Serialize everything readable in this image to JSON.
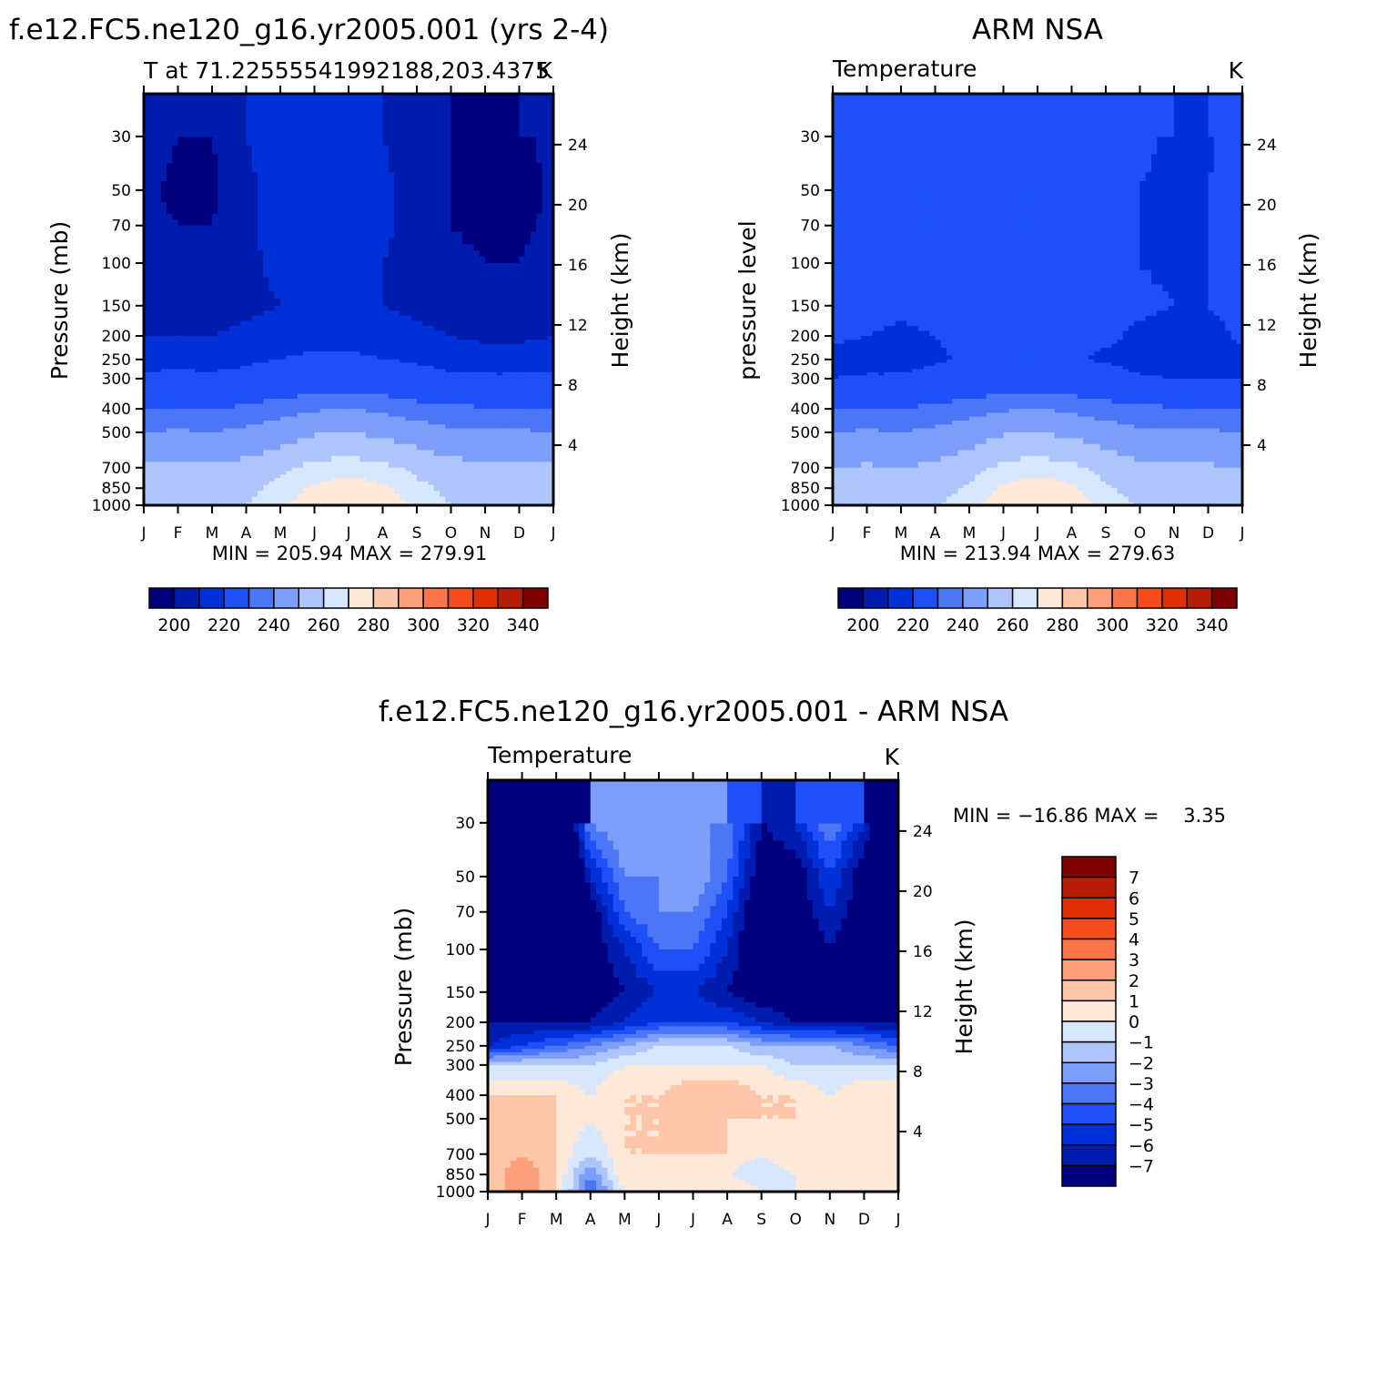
{
  "chart_data": [
    {
      "type": "heatmap",
      "title": "f.e12.FC5.ne120_g16.yr2005.001 (yrs 2-4)",
      "subtitle_left": "T at 71.22555541992188,203.4375",
      "subtitle_right": "K",
      "ylabel_left": "Pressure (mb)",
      "ylabel_right": "Height (km)",
      "x_ticks": [
        "J",
        "F",
        "M",
        "A",
        "M",
        "J",
        "J",
        "A",
        "S",
        "O",
        "N",
        "D",
        "J"
      ],
      "pressure_ticks": [
        30,
        50,
        70,
        100,
        150,
        200,
        250,
        300,
        400,
        500,
        700,
        850,
        1000
      ],
      "height_ticks": [
        24,
        20,
        16,
        12,
        8,
        4
      ],
      "stats": "MIN = 205.94 MAX = 279.91",
      "colorbar_labels": [
        200,
        220,
        240,
        260,
        280,
        300,
        320,
        340
      ],
      "colorbar_colors": [
        "#00007f",
        "#001caf",
        "#0030d8",
        "#1f50f7",
        "#4b77f7",
        "#7c9ef9",
        "#adc5fb",
        "#d7e7fd",
        "#fee9d9",
        "#fdc6a9",
        "#fca07b",
        "#fc7449",
        "#f84c1e",
        "#e02e07",
        "#b71c06",
        "#7f0000"
      ],
      "values": [
        [
          214,
          212,
          212,
          216,
          218,
          220,
          219,
          216,
          214,
          212,
          210,
          210,
          214
        ],
        [
          213,
          211,
          211,
          215,
          218,
          221,
          220,
          217,
          214,
          212,
          210,
          210,
          213
        ],
        [
          213,
          212,
          212,
          215,
          218,
          221,
          220,
          217,
          214,
          212,
          211,
          211,
          213
        ],
        [
          214,
          213,
          213,
          215,
          217,
          219,
          219,
          216,
          214,
          213,
          212,
          212,
          214
        ],
        [
          215,
          214,
          214,
          215,
          216,
          218,
          218,
          216,
          215,
          214,
          213,
          213,
          215
        ],
        [
          216,
          216,
          216,
          217,
          218,
          219,
          219,
          218,
          217,
          216,
          215,
          215,
          216
        ],
        [
          219,
          219,
          219,
          220,
          221,
          222,
          222,
          221,
          220,
          219,
          218,
          218,
          219
        ],
        [
          222,
          223,
          222,
          223,
          226,
          228,
          228,
          227,
          224,
          222,
          222,
          222,
          222
        ],
        [
          236,
          237,
          236,
          238,
          241,
          244,
          245,
          243,
          240,
          238,
          237,
          237,
          236
        ],
        [
          245,
          246,
          245,
          247,
          250,
          254,
          255,
          253,
          250,
          247,
          246,
          246,
          245
        ],
        [
          256,
          257,
          256,
          258,
          262,
          266,
          268,
          266,
          262,
          258,
          257,
          257,
          256
        ],
        [
          259,
          260,
          259,
          262,
          266,
          271,
          273,
          271,
          266,
          262,
          260,
          260,
          259
        ],
        [
          261,
          262,
          261,
          264,
          269,
          274,
          276,
          274,
          269,
          264,
          262,
          262,
          261
        ]
      ]
    },
    {
      "type": "heatmap",
      "title": "ARM NSA",
      "subtitle_left": "Temperature",
      "subtitle_right": "K",
      "ylabel_left": "pressure level",
      "ylabel_right": "Height (km)",
      "x_ticks": [
        "J",
        "F",
        "M",
        "A",
        "M",
        "J",
        "J",
        "A",
        "S",
        "O",
        "N",
        "D",
        "J"
      ],
      "pressure_ticks": [
        30,
        50,
        70,
        100,
        150,
        200,
        250,
        300,
        400,
        500,
        700,
        850,
        1000
      ],
      "height_ticks": [
        24,
        20,
        16,
        12,
        8,
        4
      ],
      "stats": "MIN = 213.94 MAX = 279.63",
      "colorbar_labels": [
        200,
        220,
        240,
        260,
        280,
        300,
        320,
        340
      ],
      "colorbar_colors": [
        "#00007f",
        "#001caf",
        "#0030d8",
        "#1f50f7",
        "#4b77f7",
        "#7c9ef9",
        "#adc5fb",
        "#d7e7fd",
        "#fee9d9",
        "#fdc6a9",
        "#fca07b",
        "#fc7449",
        "#f84c1e",
        "#e02e07",
        "#b71c06",
        "#7f0000"
      ],
      "values": [
        [
          224,
          224,
          224,
          224,
          225,
          226,
          228,
          226,
          223,
          222,
          220,
          220,
          224
        ],
        [
          224,
          224,
          224,
          224,
          225,
          226,
          226,
          225,
          223,
          221,
          220,
          221,
          224
        ],
        [
          223,
          223,
          223,
          223,
          224,
          225,
          225,
          224,
          223,
          221,
          220,
          221,
          223
        ],
        [
          223,
          223,
          223,
          223,
          224,
          225,
          225,
          224,
          223,
          221,
          220,
          221,
          223
        ],
        [
          223,
          223,
          222,
          223,
          224,
          225,
          225,
          224,
          223,
          222,
          221,
          221,
          223
        ],
        [
          222,
          221,
          220,
          221,
          223,
          224,
          224,
          223,
          222,
          220,
          219,
          219,
          222
        ],
        [
          219,
          218,
          218,
          220,
          222,
          223,
          223,
          222,
          220,
          218,
          218,
          218,
          219
        ],
        [
          221,
          222,
          222,
          224,
          226,
          228,
          228,
          227,
          225,
          222,
          221,
          221,
          221
        ],
        [
          236,
          237,
          236,
          238,
          241,
          244,
          245,
          243,
          240,
          238,
          237,
          237,
          236
        ],
        [
          245,
          246,
          245,
          247,
          250,
          254,
          255,
          253,
          250,
          247,
          246,
          246,
          245
        ],
        [
          255,
          256,
          255,
          257,
          261,
          266,
          268,
          266,
          261,
          257,
          256,
          256,
          255
        ],
        [
          258,
          259,
          258,
          261,
          265,
          271,
          273,
          271,
          265,
          261,
          259,
          259,
          258
        ],
        [
          260,
          261,
          260,
          263,
          268,
          274,
          276,
          274,
          268,
          263,
          261,
          261,
          260
        ]
      ]
    },
    {
      "type": "heatmap",
      "title": "f.e12.FC5.ne120_g16.yr2005.001 - ARM NSA",
      "subtitle_left": "Temperature",
      "subtitle_right": "K",
      "ylabel_left": "Pressure (mb)",
      "ylabel_right": "Height (km)",
      "x_ticks": [
        "J",
        "F",
        "M",
        "A",
        "M",
        "J",
        "J",
        "A",
        "S",
        "O",
        "N",
        "D",
        "J"
      ],
      "pressure_ticks": [
        30,
        50,
        70,
        100,
        150,
        200,
        250,
        300,
        400,
        500,
        700,
        850,
        1000
      ],
      "height_ticks": [
        24,
        20,
        16,
        12,
        8,
        4
      ],
      "stats": "MIN = −16.86 MAX =    3.35",
      "colorbar_labels": [
        "7",
        "6",
        "5",
        "4",
        "3",
        "2",
        "1",
        "0",
        "−1",
        "−2",
        "−3",
        "−4",
        "−5",
        "−6",
        "−7"
      ],
      "colorbar_colors": [
        "#00007f",
        "#001caf",
        "#0030d8",
        "#1f50f7",
        "#4b77f7",
        "#7c9ef9",
        "#adc5fb",
        "#d7e7fd",
        "#fee9d9",
        "#fdc6a9",
        "#fca07b",
        "#fc7449",
        "#f84c1e",
        "#e02e07",
        "#b71c06",
        "#7f0000"
      ],
      "values": [
        [
          -10,
          -12,
          -12,
          -3,
          -2,
          -3,
          -3,
          -3,
          -7,
          -6,
          -3,
          -6,
          -10
        ],
        [
          -11,
          -13,
          -13,
          -6,
          -3,
          -3,
          -2,
          -4,
          -8,
          -8,
          -5,
          -8,
          -11
        ],
        [
          -10,
          -12,
          -12,
          -8,
          -4,
          -3,
          -3,
          -5,
          -9,
          -8,
          -6,
          -8,
          -10
        ],
        [
          -9,
          -11,
          -11,
          -8,
          -6,
          -4,
          -4,
          -6,
          -9,
          -9,
          -7,
          -9,
          -9
        ],
        [
          -8,
          -9,
          -9,
          -8,
          -7,
          -6,
          -6,
          -7,
          -8,
          -8,
          -7,
          -8,
          -8
        ],
        [
          -7,
          -7,
          -7,
          -7,
          -6,
          -5,
          -5,
          -5,
          -6,
          -7,
          -7,
          -7,
          -7
        ],
        [
          -6,
          -5,
          -4,
          -3,
          -2,
          -1,
          -1,
          -1,
          -2,
          -2,
          -2,
          -3,
          -4
        ],
        [
          -1,
          -1,
          -1,
          -1,
          0,
          0,
          0,
          0,
          0,
          -1,
          -1,
          -1,
          -1
        ],
        [
          1,
          1,
          1,
          0,
          1,
          1,
          2,
          2,
          1,
          1,
          0,
          1,
          1
        ],
        [
          1,
          2,
          1,
          0,
          1,
          1,
          2,
          1,
          1,
          1,
          0,
          0,
          1
        ],
        [
          1,
          2,
          1,
          -1,
          1,
          1,
          1,
          1,
          0,
          1,
          0,
          1,
          1
        ],
        [
          1,
          3,
          1,
          -3,
          1,
          0,
          0,
          0,
          -1,
          0,
          1,
          0,
          1
        ],
        [
          1,
          3,
          1,
          -4,
          0,
          0,
          0,
          1,
          0,
          0,
          0,
          0,
          1
        ]
      ]
    }
  ]
}
